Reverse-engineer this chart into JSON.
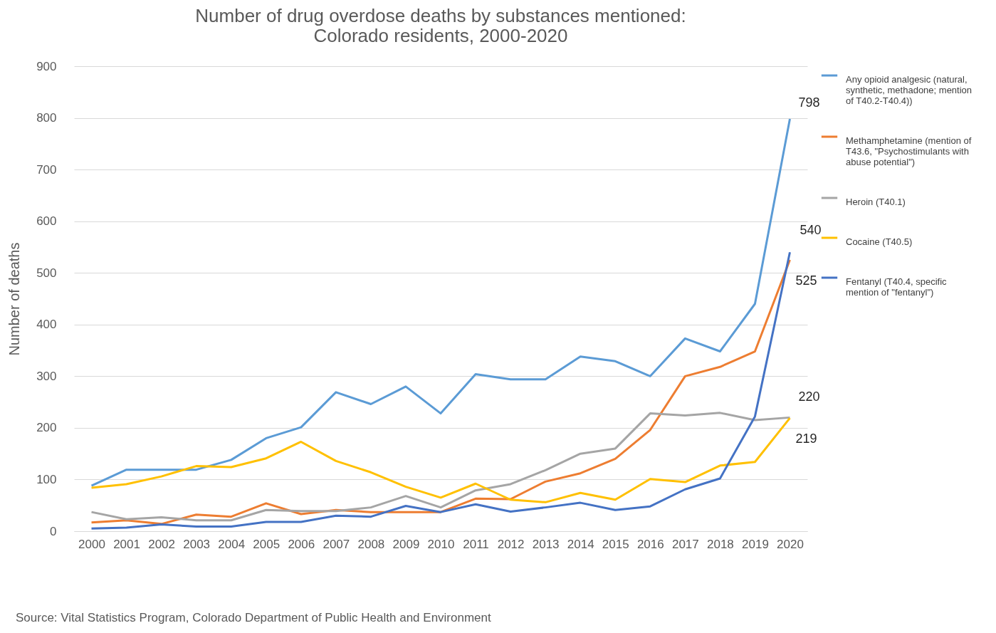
{
  "chart_data": {
    "type": "line",
    "title": "Number of drug overdose deaths by substances mentioned: Colorado residents, 2000-2020",
    "ylabel": "Number of deaths",
    "categories": [
      "2000",
      "2001",
      "2002",
      "2003",
      "2004",
      "2005",
      "2006",
      "2007",
      "2008",
      "2009",
      "2010",
      "2011",
      "2012",
      "2013",
      "2014",
      "2015",
      "2016",
      "2017",
      "2018",
      "2019",
      "2020"
    ],
    "series": [
      {
        "name": "Any opioid analgesic (natural, synthetic, methadone; mention of T40.2-T40.4))",
        "color": "#5b9bd5",
        "values": [
          88,
          119,
          119,
          119,
          138,
          180,
          201,
          269,
          246,
          280,
          228,
          304,
          294,
          294,
          338,
          329,
          300,
          373,
          348,
          440,
          798
        ],
        "value_labels": [
          null,
          null,
          null,
          null,
          null,
          null,
          null,
          null,
          null,
          null,
          null,
          null,
          null,
          null,
          null,
          null,
          null,
          null,
          null,
          null,
          "798"
        ]
      },
      {
        "name": "Methamphetamine (mention of T43.6, \"Psychostimulants with abuse potential\")",
        "color": "#ed7d31",
        "values": [
          17,
          21,
          14,
          32,
          28,
          54,
          33,
          41,
          37,
          37,
          37,
          63,
          62,
          96,
          112,
          140,
          196,
          300,
          318,
          348,
          525
        ],
        "value_labels": [
          null,
          null,
          null,
          null,
          null,
          null,
          null,
          null,
          null,
          null,
          null,
          null,
          null,
          null,
          null,
          null,
          null,
          null,
          null,
          null,
          "525"
        ]
      },
      {
        "name": "Heroin (T40.1)",
        "color": "#a5a5a5",
        "values": [
          37,
          23,
          27,
          21,
          21,
          41,
          39,
          39,
          46,
          68,
          46,
          79,
          91,
          118,
          150,
          160,
          228,
          224,
          229,
          215,
          220
        ],
        "value_labels": [
          null,
          null,
          null,
          null,
          null,
          null,
          null,
          null,
          null,
          null,
          null,
          null,
          null,
          null,
          null,
          null,
          null,
          null,
          null,
          null,
          "220"
        ]
      },
      {
        "name": "Cocaine (T40.5)",
        "color": "#ffc000",
        "values": [
          84,
          91,
          106,
          126,
          124,
          141,
          173,
          136,
          114,
          86,
          65,
          92,
          61,
          56,
          74,
          61,
          101,
          95,
          127,
          134,
          219
        ],
        "value_labels": [
          null,
          null,
          null,
          null,
          null,
          null,
          null,
          null,
          null,
          null,
          null,
          null,
          null,
          null,
          null,
          null,
          null,
          null,
          null,
          null,
          "219"
        ]
      },
      {
        "name": "Fentanyl (T40.4, specific mention of \"fentanyl\")",
        "color": "#4472c4",
        "values": [
          5,
          7,
          13,
          9,
          9,
          18,
          18,
          30,
          28,
          49,
          37,
          52,
          38,
          46,
          55,
          41,
          48,
          81,
          102,
          222,
          540
        ],
        "value_labels": [
          null,
          null,
          null,
          null,
          null,
          null,
          null,
          null,
          null,
          null,
          null,
          null,
          null,
          null,
          null,
          null,
          null,
          null,
          null,
          null,
          "540"
        ]
      }
    ],
    "ylim": [
      0,
      900
    ],
    "yticks": [
      0,
      100,
      200,
      300,
      400,
      500,
      600,
      700,
      800,
      900
    ],
    "grid": "y",
    "legend": "right",
    "annotations": [
      "Source:  Vital Statistics Program, Colorado Department of Public Health and Environment"
    ]
  }
}
